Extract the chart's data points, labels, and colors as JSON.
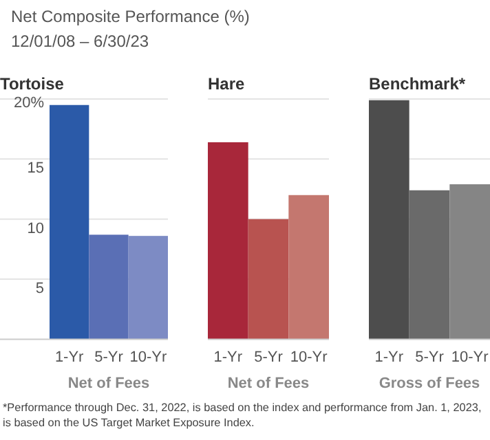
{
  "chart_data": [
    {
      "type": "bar",
      "title": "Net Composite Performance (%)",
      "subtitle": "12/01/08 – 6/30/23",
      "annotations": [
        "Tortoise"
      ],
      "categories": [
        "1-Yr",
        "5-Yr",
        "10-Yr"
      ],
      "xlabel": "Net of Fees",
      "values": [
        19.5,
        8.7,
        8.6
      ],
      "colors": [
        "#2b5aa8",
        "#5a6fb5",
        "#7d8bc4"
      ],
      "ylim": [
        0,
        20
      ],
      "yticks": [
        {
          "value": 5,
          "label": "5"
        },
        {
          "value": 10,
          "label": "10"
        },
        {
          "value": 15,
          "label": "15"
        },
        {
          "value": 20,
          "label": "20%"
        }
      ],
      "grid": "y"
    },
    {
      "type": "bar",
      "annotations": [
        "Hare"
      ],
      "categories": [
        "1-Yr",
        "5-Yr",
        "10-Yr"
      ],
      "xlabel": "Net of Fees",
      "values": [
        16.4,
        10.0,
        12.0
      ],
      "colors": [
        "#a8273a",
        "#b85350",
        "#c4776f"
      ],
      "ylim": [
        0,
        20
      ],
      "yticks": [
        {
          "value": 5,
          "label": null
        },
        {
          "value": 10,
          "label": null
        },
        {
          "value": 15,
          "label": null
        },
        {
          "value": 20,
          "label": null
        }
      ],
      "grid": "y",
      "tick_labels": "x"
    },
    {
      "type": "bar",
      "annotations": [
        "Benchmark*",
        "*Performance through Dec. 31, 2022, is based on the index and performance from Jan. 1, 2023, is based on the US Target Market Exposure Index."
      ],
      "categories": [
        "1-Yr",
        "5-Yr",
        "10-Yr"
      ],
      "xlabel": "Gross of Fees",
      "values": [
        19.9,
        12.4,
        12.9
      ],
      "colors": [
        "#4d4d4d",
        "#6a6a6a",
        "#858585"
      ],
      "ylim": [
        0,
        20
      ],
      "yticks": [
        {
          "value": 5,
          "label": null
        },
        {
          "value": 10,
          "label": null
        },
        {
          "value": 15,
          "label": null
        },
        {
          "value": 20,
          "label": null
        }
      ],
      "grid": "y",
      "tick_labels": "x"
    }
  ]
}
